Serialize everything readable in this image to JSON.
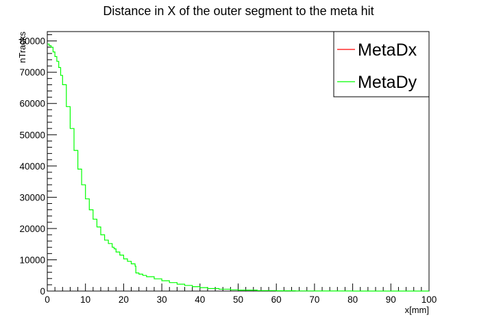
{
  "chart_data": {
    "type": "line",
    "title": "Distance in X of the outer segment to the meta hit",
    "xlabel": "x[mm]",
    "ylabel": "nTracks",
    "xlim": [
      0,
      100
    ],
    "ylim": [
      0,
      83000
    ],
    "x_ticks": [
      0,
      10,
      20,
      30,
      40,
      50,
      60,
      70,
      80,
      90,
      100
    ],
    "y_ticks": [
      0,
      10000,
      20000,
      30000,
      40000,
      50000,
      60000,
      70000,
      80000
    ],
    "legend_position": "top-right",
    "series": [
      {
        "name": "MetaDx",
        "color": "#ff0000",
        "x": [],
        "y": []
      },
      {
        "name": "MetaDy",
        "color": "#00ff00",
        "x": [
          0,
          0.5,
          1,
          1.5,
          2,
          2.5,
          3,
          3.5,
          4,
          5,
          6,
          7,
          8,
          9,
          10,
          11,
          12,
          13,
          14,
          15,
          16,
          17,
          17.5,
          18,
          19,
          20,
          21,
          22,
          23,
          23.2,
          24,
          25,
          26,
          28,
          30,
          32,
          34,
          36,
          38,
          40,
          42,
          45,
          48,
          50,
          55,
          60,
          65,
          70,
          80,
          90,
          100
        ],
        "y": [
          79000,
          78500,
          78000,
          76500,
          75000,
          73500,
          71500,
          69000,
          66000,
          59000,
          52000,
          45000,
          39000,
          34000,
          29500,
          26000,
          23000,
          20500,
          18000,
          16300,
          15200,
          14000,
          13500,
          12500,
          11500,
          10300,
          9500,
          8700,
          8000,
          5800,
          5400,
          5000,
          4600,
          3900,
          3300,
          2700,
          2200,
          1800,
          1400,
          1100,
          800,
          600,
          400,
          300,
          150,
          80,
          40,
          20,
          5,
          2,
          0
        ]
      }
    ]
  }
}
